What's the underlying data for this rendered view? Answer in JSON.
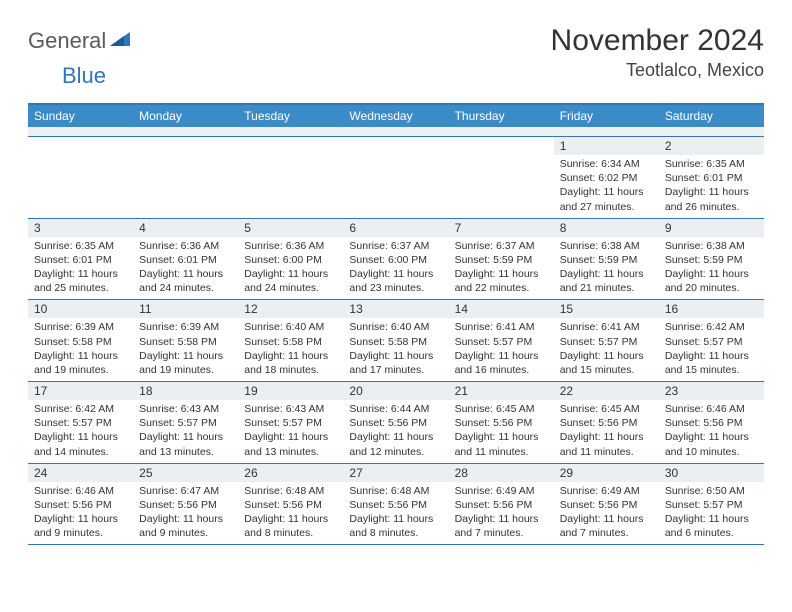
{
  "logo": {
    "text1": "General",
    "text2": "Blue"
  },
  "title": "November 2024",
  "location": "Teotlalco, Mexico",
  "colors": {
    "header_bg": "#3b8bc9",
    "border": "#2f77b8",
    "daynum_bg": "#eceff1",
    "text": "#333333"
  },
  "dayHeaders": [
    "Sunday",
    "Monday",
    "Tuesday",
    "Wednesday",
    "Thursday",
    "Friday",
    "Saturday"
  ],
  "weeks": [
    [
      {
        "n": "",
        "sr": "",
        "ss": "",
        "dl": ""
      },
      {
        "n": "",
        "sr": "",
        "ss": "",
        "dl": ""
      },
      {
        "n": "",
        "sr": "",
        "ss": "",
        "dl": ""
      },
      {
        "n": "",
        "sr": "",
        "ss": "",
        "dl": ""
      },
      {
        "n": "",
        "sr": "",
        "ss": "",
        "dl": ""
      },
      {
        "n": "1",
        "sr": "Sunrise: 6:34 AM",
        "ss": "Sunset: 6:02 PM",
        "dl": "Daylight: 11 hours and 27 minutes."
      },
      {
        "n": "2",
        "sr": "Sunrise: 6:35 AM",
        "ss": "Sunset: 6:01 PM",
        "dl": "Daylight: 11 hours and 26 minutes."
      }
    ],
    [
      {
        "n": "3",
        "sr": "Sunrise: 6:35 AM",
        "ss": "Sunset: 6:01 PM",
        "dl": "Daylight: 11 hours and 25 minutes."
      },
      {
        "n": "4",
        "sr": "Sunrise: 6:36 AM",
        "ss": "Sunset: 6:01 PM",
        "dl": "Daylight: 11 hours and 24 minutes."
      },
      {
        "n": "5",
        "sr": "Sunrise: 6:36 AM",
        "ss": "Sunset: 6:00 PM",
        "dl": "Daylight: 11 hours and 24 minutes."
      },
      {
        "n": "6",
        "sr": "Sunrise: 6:37 AM",
        "ss": "Sunset: 6:00 PM",
        "dl": "Daylight: 11 hours and 23 minutes."
      },
      {
        "n": "7",
        "sr": "Sunrise: 6:37 AM",
        "ss": "Sunset: 5:59 PM",
        "dl": "Daylight: 11 hours and 22 minutes."
      },
      {
        "n": "8",
        "sr": "Sunrise: 6:38 AM",
        "ss": "Sunset: 5:59 PM",
        "dl": "Daylight: 11 hours and 21 minutes."
      },
      {
        "n": "9",
        "sr": "Sunrise: 6:38 AM",
        "ss": "Sunset: 5:59 PM",
        "dl": "Daylight: 11 hours and 20 minutes."
      }
    ],
    [
      {
        "n": "10",
        "sr": "Sunrise: 6:39 AM",
        "ss": "Sunset: 5:58 PM",
        "dl": "Daylight: 11 hours and 19 minutes."
      },
      {
        "n": "11",
        "sr": "Sunrise: 6:39 AM",
        "ss": "Sunset: 5:58 PM",
        "dl": "Daylight: 11 hours and 19 minutes."
      },
      {
        "n": "12",
        "sr": "Sunrise: 6:40 AM",
        "ss": "Sunset: 5:58 PM",
        "dl": "Daylight: 11 hours and 18 minutes."
      },
      {
        "n": "13",
        "sr": "Sunrise: 6:40 AM",
        "ss": "Sunset: 5:58 PM",
        "dl": "Daylight: 11 hours and 17 minutes."
      },
      {
        "n": "14",
        "sr": "Sunrise: 6:41 AM",
        "ss": "Sunset: 5:57 PM",
        "dl": "Daylight: 11 hours and 16 minutes."
      },
      {
        "n": "15",
        "sr": "Sunrise: 6:41 AM",
        "ss": "Sunset: 5:57 PM",
        "dl": "Daylight: 11 hours and 15 minutes."
      },
      {
        "n": "16",
        "sr": "Sunrise: 6:42 AM",
        "ss": "Sunset: 5:57 PM",
        "dl": "Daylight: 11 hours and 15 minutes."
      }
    ],
    [
      {
        "n": "17",
        "sr": "Sunrise: 6:42 AM",
        "ss": "Sunset: 5:57 PM",
        "dl": "Daylight: 11 hours and 14 minutes."
      },
      {
        "n": "18",
        "sr": "Sunrise: 6:43 AM",
        "ss": "Sunset: 5:57 PM",
        "dl": "Daylight: 11 hours and 13 minutes."
      },
      {
        "n": "19",
        "sr": "Sunrise: 6:43 AM",
        "ss": "Sunset: 5:57 PM",
        "dl": "Daylight: 11 hours and 13 minutes."
      },
      {
        "n": "20",
        "sr": "Sunrise: 6:44 AM",
        "ss": "Sunset: 5:56 PM",
        "dl": "Daylight: 11 hours and 12 minutes."
      },
      {
        "n": "21",
        "sr": "Sunrise: 6:45 AM",
        "ss": "Sunset: 5:56 PM",
        "dl": "Daylight: 11 hours and 11 minutes."
      },
      {
        "n": "22",
        "sr": "Sunrise: 6:45 AM",
        "ss": "Sunset: 5:56 PM",
        "dl": "Daylight: 11 hours and 11 minutes."
      },
      {
        "n": "23",
        "sr": "Sunrise: 6:46 AM",
        "ss": "Sunset: 5:56 PM",
        "dl": "Daylight: 11 hours and 10 minutes."
      }
    ],
    [
      {
        "n": "24",
        "sr": "Sunrise: 6:46 AM",
        "ss": "Sunset: 5:56 PM",
        "dl": "Daylight: 11 hours and 9 minutes."
      },
      {
        "n": "25",
        "sr": "Sunrise: 6:47 AM",
        "ss": "Sunset: 5:56 PM",
        "dl": "Daylight: 11 hours and 9 minutes."
      },
      {
        "n": "26",
        "sr": "Sunrise: 6:48 AM",
        "ss": "Sunset: 5:56 PM",
        "dl": "Daylight: 11 hours and 8 minutes."
      },
      {
        "n": "27",
        "sr": "Sunrise: 6:48 AM",
        "ss": "Sunset: 5:56 PM",
        "dl": "Daylight: 11 hours and 8 minutes."
      },
      {
        "n": "28",
        "sr": "Sunrise: 6:49 AM",
        "ss": "Sunset: 5:56 PM",
        "dl": "Daylight: 11 hours and 7 minutes."
      },
      {
        "n": "29",
        "sr": "Sunrise: 6:49 AM",
        "ss": "Sunset: 5:56 PM",
        "dl": "Daylight: 11 hours and 7 minutes."
      },
      {
        "n": "30",
        "sr": "Sunrise: 6:50 AM",
        "ss": "Sunset: 5:57 PM",
        "dl": "Daylight: 11 hours and 6 minutes."
      }
    ]
  ]
}
